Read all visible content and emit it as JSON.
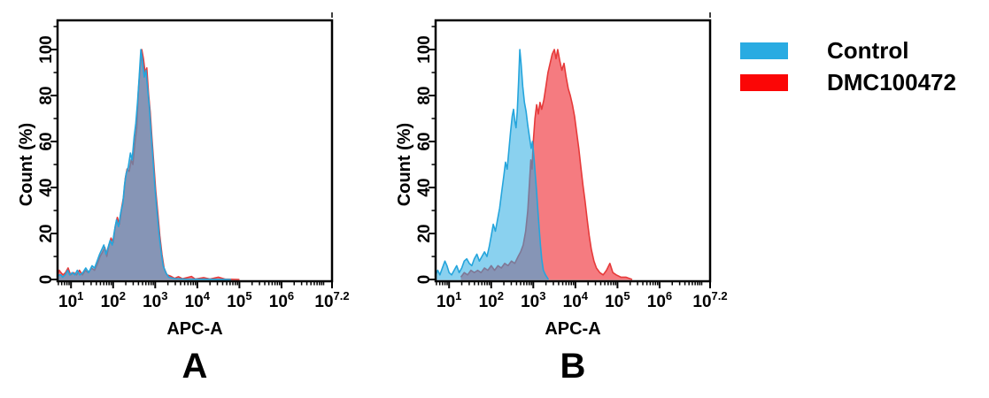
{
  "figure": {
    "panels": [
      {
        "label": "A"
      },
      {
        "label": "B"
      }
    ],
    "legend": [
      {
        "label": "Control",
        "color": "#29ABE2"
      },
      {
        "label": "DMC100472",
        "color": "#FB0606"
      }
    ]
  },
  "chart_data": [
    {
      "type": "area",
      "panel": "A",
      "xlabel": "APC-A",
      "ylabel": "Count (%)",
      "x_scale": "log10",
      "x_domain_log10": [
        0.68,
        7.2
      ],
      "ylim": [
        0,
        100
      ],
      "grid": false,
      "x_major_ticks": [
        {
          "log10": 1,
          "exp": "1"
        },
        {
          "log10": 2,
          "exp": "2"
        },
        {
          "log10": 3,
          "exp": "3"
        },
        {
          "log10": 4,
          "exp": "4"
        },
        {
          "log10": 5,
          "exp": "5"
        },
        {
          "log10": 6,
          "exp": "6"
        },
        {
          "log10": 7.2,
          "exp": "7.2"
        }
      ],
      "y_major_ticks": [
        0,
        20,
        40,
        60,
        80,
        100
      ],
      "y_minor_ticks": [
        10,
        30,
        50,
        70,
        90,
        110
      ],
      "series": [
        {
          "name": "DMC100472",
          "fill": "rgba(237,28,36,0.58)",
          "stroke": "#E63A3A",
          "points": [
            [
              0.68,
              2
            ],
            [
              0.72,
              4
            ],
            [
              0.76,
              3
            ],
            [
              0.81,
              2
            ],
            [
              0.87,
              3
            ],
            [
              0.93,
              5
            ],
            [
              0.99,
              2
            ],
            [
              1.06,
              3
            ],
            [
              1.13,
              2
            ],
            [
              1.2,
              4
            ],
            [
              1.27,
              2
            ],
            [
              1.34,
              4
            ],
            [
              1.41,
              3
            ],
            [
              1.49,
              5
            ],
            [
              1.56,
              4
            ],
            [
              1.63,
              7
            ],
            [
              1.69,
              10
            ],
            [
              1.75,
              12
            ],
            [
              1.8,
              14
            ],
            [
              1.85,
              10
            ],
            [
              1.9,
              15
            ],
            [
              1.95,
              18
            ],
            [
              2.0,
              16
            ],
            [
              2.05,
              23
            ],
            [
              2.1,
              27
            ],
            [
              2.15,
              24
            ],
            [
              2.2,
              31
            ],
            [
              2.25,
              36
            ],
            [
              2.29,
              44
            ],
            [
              2.33,
              48
            ],
            [
              2.38,
              47
            ],
            [
              2.43,
              52
            ],
            [
              2.47,
              50
            ],
            [
              2.52,
              60
            ],
            [
              2.56,
              66
            ],
            [
              2.6,
              82
            ],
            [
              2.64,
              92
            ],
            [
              2.68,
              100
            ],
            [
              2.72,
              96
            ],
            [
              2.76,
              90
            ],
            [
              2.8,
              92
            ],
            [
              2.84,
              81
            ],
            [
              2.88,
              73
            ],
            [
              2.92,
              62
            ],
            [
              2.96,
              52
            ],
            [
              3.01,
              39
            ],
            [
              3.06,
              29
            ],
            [
              3.11,
              19
            ],
            [
              3.16,
              11
            ],
            [
              3.21,
              5
            ],
            [
              3.28,
              2
            ],
            [
              3.36,
              1.5
            ],
            [
              3.46,
              0.5
            ],
            [
              3.55,
              1.2
            ],
            [
              3.65,
              0.3
            ],
            [
              3.86,
              1.3
            ],
            [
              3.95,
              0.2
            ],
            [
              4.15,
              0.8
            ],
            [
              4.3,
              0.2
            ],
            [
              4.5,
              1.0
            ],
            [
              4.65,
              0.2
            ],
            [
              5.0,
              0
            ]
          ]
        },
        {
          "name": "Control",
          "fill": "rgba(41,171,226,0.55)",
          "stroke": "#25A5DC",
          "points": [
            [
              0.68,
              1
            ],
            [
              0.72,
              2
            ],
            [
              0.76,
              2
            ],
            [
              0.8,
              1
            ],
            [
              0.86,
              2
            ],
            [
              0.92,
              4
            ],
            [
              0.97,
              2
            ],
            [
              1.03,
              3
            ],
            [
              1.09,
              2
            ],
            [
              1.15,
              4
            ],
            [
              1.21,
              2
            ],
            [
              1.28,
              3
            ],
            [
              1.35,
              5
            ],
            [
              1.42,
              3
            ],
            [
              1.5,
              6
            ],
            [
              1.56,
              5
            ],
            [
              1.62,
              8
            ],
            [
              1.68,
              11
            ],
            [
              1.73,
              13
            ],
            [
              1.78,
              15
            ],
            [
              1.83,
              11
            ],
            [
              1.88,
              14
            ],
            [
              1.93,
              17
            ],
            [
              1.98,
              15
            ],
            [
              2.03,
              21
            ],
            [
              2.08,
              26
            ],
            [
              2.13,
              23
            ],
            [
              2.18,
              29
            ],
            [
              2.23,
              33
            ],
            [
              2.27,
              41
            ],
            [
              2.31,
              46
            ],
            [
              2.36,
              49
            ],
            [
              2.41,
              55
            ],
            [
              2.45,
              52
            ],
            [
              2.5,
              62
            ],
            [
              2.54,
              68
            ],
            [
              2.58,
              77
            ],
            [
              2.62,
              88
            ],
            [
              2.66,
              100
            ],
            [
              2.7,
              95
            ],
            [
              2.74,
              88
            ],
            [
              2.78,
              91
            ],
            [
              2.82,
              83
            ],
            [
              2.86,
              75
            ],
            [
              2.9,
              64
            ],
            [
              2.94,
              54
            ],
            [
              2.99,
              41
            ],
            [
              3.04,
              30
            ],
            [
              3.09,
              20
            ],
            [
              3.14,
              12
            ],
            [
              3.19,
              6
            ],
            [
              3.25,
              3
            ],
            [
              3.32,
              1
            ],
            [
              3.45,
              0.4
            ],
            [
              3.7,
              0.2
            ],
            [
              4.2,
              0.1
            ],
            [
              4.8,
              0
            ]
          ]
        }
      ]
    },
    {
      "type": "area",
      "panel": "B",
      "xlabel": "APC-A",
      "ylabel": "Count (%)",
      "x_scale": "log10",
      "x_domain_log10": [
        0.68,
        7.2
      ],
      "ylim": [
        0,
        100
      ],
      "grid": false,
      "x_major_ticks": [
        {
          "log10": 1,
          "exp": "1"
        },
        {
          "log10": 2,
          "exp": "2"
        },
        {
          "log10": 3,
          "exp": "3"
        },
        {
          "log10": 4,
          "exp": "4"
        },
        {
          "log10": 5,
          "exp": "5"
        },
        {
          "log10": 6,
          "exp": "6"
        },
        {
          "log10": 7.2,
          "exp": "7.2"
        }
      ],
      "y_major_ticks": [
        0,
        20,
        40,
        60,
        80,
        100
      ],
      "y_minor_ticks": [
        10,
        30,
        50,
        70,
        90,
        110
      ],
      "series": [
        {
          "name": "DMC100472",
          "fill": "rgba(237,28,36,0.58)",
          "stroke": "#E63A3A",
          "points": [
            [
              1.28,
              1
            ],
            [
              1.36,
              3
            ],
            [
              1.44,
              2
            ],
            [
              1.52,
              4
            ],
            [
              1.6,
              3
            ],
            [
              1.68,
              4
            ],
            [
              1.76,
              3
            ],
            [
              1.84,
              5
            ],
            [
              1.92,
              4
            ],
            [
              2.0,
              6
            ],
            [
              2.08,
              4
            ],
            [
              2.16,
              6
            ],
            [
              2.24,
              5
            ],
            [
              2.32,
              7
            ],
            [
              2.4,
              6
            ],
            [
              2.48,
              8
            ],
            [
              2.56,
              7
            ],
            [
              2.64,
              10
            ],
            [
              2.7,
              12
            ],
            [
              2.76,
              15
            ],
            [
              2.82,
              21
            ],
            [
              2.87,
              30
            ],
            [
              2.91,
              42
            ],
            [
              2.94,
              52
            ],
            [
              2.97,
              48
            ],
            [
              3.0,
              60
            ],
            [
              3.04,
              70
            ],
            [
              3.08,
              76
            ],
            [
              3.12,
              72
            ],
            [
              3.16,
              77
            ],
            [
              3.2,
              74
            ],
            [
              3.25,
              78
            ],
            [
              3.3,
              84
            ],
            [
              3.35,
              90
            ],
            [
              3.4,
              94
            ],
            [
              3.45,
              98
            ],
            [
              3.5,
              100
            ],
            [
              3.54,
              96
            ],
            [
              3.58,
              100
            ],
            [
              3.63,
              95
            ],
            [
              3.68,
              91
            ],
            [
              3.73,
              94
            ],
            [
              3.78,
              88
            ],
            [
              3.83,
              83
            ],
            [
              3.88,
              80
            ],
            [
              3.93,
              76
            ],
            [
              3.98,
              71
            ],
            [
              4.03,
              64
            ],
            [
              4.08,
              57
            ],
            [
              4.13,
              49
            ],
            [
              4.18,
              41
            ],
            [
              4.23,
              34
            ],
            [
              4.28,
              26
            ],
            [
              4.33,
              19
            ],
            [
              4.38,
              13
            ],
            [
              4.44,
              8
            ],
            [
              4.5,
              5
            ],
            [
              4.58,
              3
            ],
            [
              4.66,
              2
            ],
            [
              4.74,
              4
            ],
            [
              4.82,
              7
            ],
            [
              4.89,
              3
            ],
            [
              4.97,
              2
            ],
            [
              5.08,
              1
            ],
            [
              5.2,
              1
            ],
            [
              5.35,
              0
            ]
          ]
        },
        {
          "name": "Control",
          "fill": "rgba(41,171,226,0.55)",
          "stroke": "#25A5DC",
          "points": [
            [
              0.68,
              2
            ],
            [
              0.73,
              4
            ],
            [
              0.78,
              2
            ],
            [
              0.84,
              5
            ],
            [
              0.9,
              8
            ],
            [
              0.95,
              6
            ],
            [
              1.0,
              3
            ],
            [
              1.06,
              2
            ],
            [
              1.12,
              4
            ],
            [
              1.18,
              6
            ],
            [
              1.24,
              3
            ],
            [
              1.3,
              5
            ],
            [
              1.36,
              8
            ],
            [
              1.42,
              9
            ],
            [
              1.48,
              7
            ],
            [
              1.54,
              6
            ],
            [
              1.6,
              9
            ],
            [
              1.66,
              11
            ],
            [
              1.72,
              8
            ],
            [
              1.78,
              10
            ],
            [
              1.84,
              12
            ],
            [
              1.9,
              10
            ],
            [
              1.95,
              14
            ],
            [
              2.0,
              19
            ],
            [
              2.05,
              24
            ],
            [
              2.1,
              21
            ],
            [
              2.15,
              26
            ],
            [
              2.2,
              31
            ],
            [
              2.25,
              38
            ],
            [
              2.3,
              45
            ],
            [
              2.34,
              51
            ],
            [
              2.38,
              48
            ],
            [
              2.42,
              56
            ],
            [
              2.46,
              64
            ],
            [
              2.5,
              71
            ],
            [
              2.53,
              74
            ],
            [
              2.56,
              69
            ],
            [
              2.59,
              66
            ],
            [
              2.62,
              73
            ],
            [
              2.65,
              86
            ],
            [
              2.68,
              100
            ],
            [
              2.71,
              94
            ],
            [
              2.75,
              84
            ],
            [
              2.79,
              77
            ],
            [
              2.83,
              73
            ],
            [
              2.87,
              67
            ],
            [
              2.91,
              62
            ],
            [
              2.95,
              57
            ],
            [
              2.98,
              60
            ],
            [
              3.02,
              52
            ],
            [
              3.05,
              45
            ],
            [
              3.08,
              38
            ],
            [
              3.11,
              30
            ],
            [
              3.14,
              22
            ],
            [
              3.17,
              15
            ],
            [
              3.2,
              9
            ],
            [
              3.24,
              4
            ],
            [
              3.29,
              2
            ],
            [
              3.36,
              0
            ]
          ]
        }
      ]
    }
  ]
}
